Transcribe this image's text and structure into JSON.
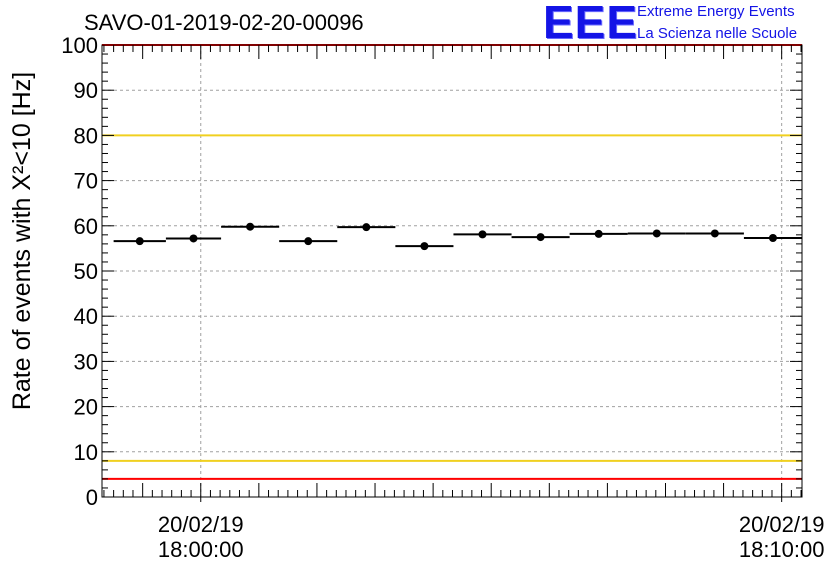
{
  "header": {
    "title": "SAVO-01-2019-02-20-00096",
    "logo_text": "EEE",
    "logo_line1": "Extreme Energy Events",
    "logo_line2": "La Scienza nelle Scuole"
  },
  "colors": {
    "red_limit": "#ff0000",
    "yellow_limit": "#f0d020",
    "logo_blue": "#1414e6",
    "grid": "#a0a0a0"
  },
  "chart_data": {
    "type": "scatter",
    "title": "SAVO-01-2019-02-20-00096",
    "xlabel": "",
    "ylabel": "Rate of events with X²<10 [Hz]",
    "ylim": [
      0,
      100
    ],
    "xlim_minutes": [
      -1.7,
      10.35
    ],
    "grid": true,
    "y_ticks": [
      "0",
      "10",
      "20",
      "30",
      "40",
      "50",
      "60",
      "70",
      "80",
      "90",
      "100"
    ],
    "x_tick_labels": [
      {
        "minute": 0,
        "date": "20/02/19",
        "time": "18:00:00"
      },
      {
        "minute": 10,
        "date": "20/02/19",
        "time": "18:10:00"
      }
    ],
    "reference_lines": [
      {
        "name": "upper-red-limit",
        "value": 100,
        "color": "red"
      },
      {
        "name": "upper-yellow-limit",
        "value": 80,
        "color": "yellow"
      },
      {
        "name": "lower-yellow-limit",
        "value": 8,
        "color": "yellow"
      },
      {
        "name": "lower-red-limit",
        "value": 4,
        "color": "red"
      }
    ],
    "points": [
      {
        "x_start": -1.5,
        "x_end": -0.6,
        "y": 56.6
      },
      {
        "x_start": -0.6,
        "x_end": 0.35,
        "y": 57.2
      },
      {
        "x_start": 0.35,
        "x_end": 1.35,
        "y": 59.8
      },
      {
        "x_start": 1.35,
        "x_end": 2.35,
        "y": 56.6
      },
      {
        "x_start": 2.35,
        "x_end": 3.35,
        "y": 59.7
      },
      {
        "x_start": 3.35,
        "x_end": 4.35,
        "y": 55.5
      },
      {
        "x_start": 4.35,
        "x_end": 5.35,
        "y": 58.1
      },
      {
        "x_start": 5.35,
        "x_end": 6.35,
        "y": 57.5
      },
      {
        "x_start": 6.35,
        "x_end": 7.35,
        "y": 58.2
      },
      {
        "x_start": 7.35,
        "x_end": 8.35,
        "y": 58.3
      },
      {
        "x_start": 8.35,
        "x_end": 9.35,
        "y": 58.3
      },
      {
        "x_start": 9.35,
        "x_end": 10.35,
        "y": 57.3
      }
    ]
  }
}
